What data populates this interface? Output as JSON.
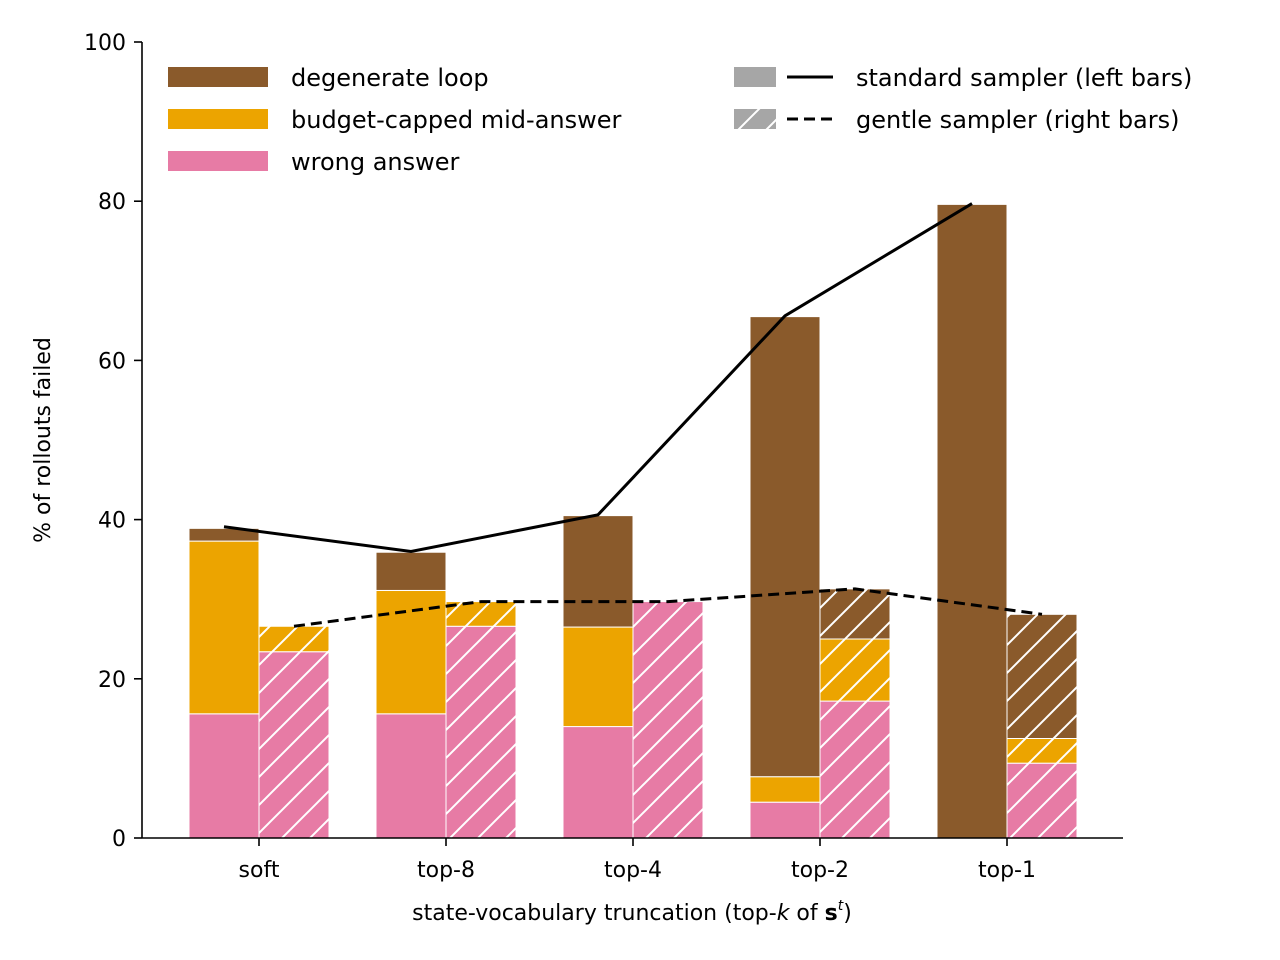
{
  "chart_data": {
    "type": "bar",
    "stacked": true,
    "grouped": true,
    "categories": [
      "soft",
      "top-8",
      "top-4",
      "top-2",
      "top-1"
    ],
    "xlabel": {
      "prefix": "state-vocabulary truncation (top-",
      "k": "k",
      "of": " of ",
      "s": "s",
      "t": "t",
      "suffix": ")"
    },
    "ylabel": "% of rollouts failed",
    "ylim": [
      0,
      100
    ],
    "yticks": [
      "0",
      "20",
      "40",
      "60",
      "80",
      "100"
    ],
    "grid": false,
    "colors": {
      "degenerate_loop": "#8a5a2b",
      "budget_capped": "#eca400",
      "wrong_answer": "#e77ba5",
      "standard_legend": "#a6a6a6"
    },
    "samplers": [
      {
        "name": "standard sampler (left bars)",
        "line_style": "solid",
        "hatched": false,
        "stacks": [
          {
            "name": "wrong answer",
            "values": [
              15.6,
              15.6,
              14.0,
              4.5,
              0
            ]
          },
          {
            "name": "budget-capped mid-answer",
            "values": [
              21.7,
              15.5,
              12.5,
              3.2,
              0
            ]
          },
          {
            "name": "degenerate loop",
            "values": [
              1.6,
              4.8,
              14.0,
              57.8,
              79.6
            ]
          }
        ],
        "line": [
          39.1,
          36.0,
          40.6,
          65.6,
          79.7
        ]
      },
      {
        "name": "gentle sampler (right bars)",
        "line_style": "dashed",
        "hatched": true,
        "stacks": [
          {
            "name": "wrong answer",
            "values": [
              23.4,
              26.6,
              29.7,
              17.2,
              9.4
            ]
          },
          {
            "name": "budget-capped mid-answer",
            "values": [
              3.2,
              3.1,
              0,
              7.8,
              3.1
            ]
          },
          {
            "name": "degenerate loop",
            "values": [
              0,
              0,
              0,
              6.3,
              15.6
            ]
          }
        ],
        "line": [
          26.6,
          29.7,
          29.7,
          31.3,
          28.1
        ]
      }
    ],
    "legend": {
      "placement": "top",
      "categories": [
        "degenerate loop",
        "budget-capped mid-answer",
        "wrong answer"
      ],
      "samplers": [
        "standard sampler (left bars)",
        "gentle sampler (right bars)"
      ]
    }
  }
}
